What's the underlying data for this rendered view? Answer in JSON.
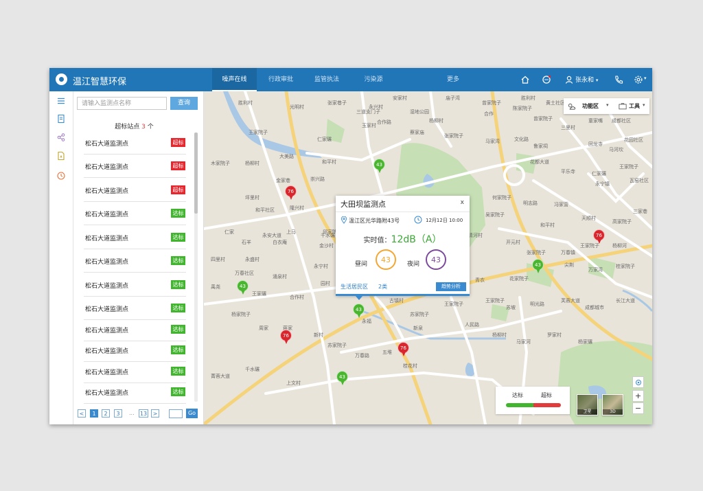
{
  "app": {
    "title": "温江智慧环保"
  },
  "nav": [
    {
      "label": "噪声在线",
      "active": true
    },
    {
      "label": "行政审批",
      "active": false
    },
    {
      "label": "监管执法",
      "active": false
    },
    {
      "label": "污染源",
      "active": false
    },
    {
      "label": "更多",
      "active": false
    }
  ],
  "header_icons": [
    "home-icon",
    "message-icon",
    "user-icon",
    "phone-icon",
    "settings-icon"
  ],
  "user": {
    "name": "张永和"
  },
  "rail_icons": [
    "menu-icon",
    "document-icon",
    "share-icon",
    "file-icon",
    "clock-icon"
  ],
  "panel": {
    "search_placeholder": "请输入监测点名称",
    "search_button": "查询",
    "count_prefix": "超标站点",
    "count_value": "3",
    "count_suffix": "个",
    "stations": [
      {
        "name": "松石大道监测点",
        "status": "超标",
        "level": "red"
      },
      {
        "name": "松石大道监测点",
        "status": "超标",
        "level": "red"
      },
      {
        "name": "松石大道监测点",
        "status": "超标",
        "level": "red"
      },
      {
        "name": "松石大道监测点",
        "status": "达标",
        "level": "green"
      },
      {
        "name": "松石大道监测点",
        "status": "达标",
        "level": "green"
      },
      {
        "name": "松石大道监测点",
        "status": "达标",
        "level": "green"
      },
      {
        "name": "松石大道监测点",
        "status": "达标",
        "level": "green"
      },
      {
        "name": "松石大道监测点",
        "status": "达标",
        "level": "green"
      },
      {
        "name": "松石大道监测点",
        "status": "达标",
        "level": "green"
      },
      {
        "name": "松石大道监测点",
        "status": "达标",
        "level": "green"
      },
      {
        "name": "松石大道监测点",
        "status": "达标",
        "level": "green"
      },
      {
        "name": "松石大道监测点",
        "status": "达标",
        "level": "green"
      }
    ],
    "pagination": {
      "prev": "<",
      "pages": [
        "1",
        "2",
        "3"
      ],
      "current": "1",
      "ellipsis": "...",
      "last": "13",
      "next": ">",
      "go": "Go"
    }
  },
  "map": {
    "toolbar": {
      "function_area": "功能区",
      "tools": "工具"
    },
    "place_labels": [
      "安家村",
      "庙子湾",
      "曾家院子",
      "陈家院子",
      "胜利村",
      "黄土社区",
      "三道堰",
      "胜利村",
      "张家巷子",
      "光明村",
      "永兴村",
      "三道支门子",
      "湿地公园",
      "合作路",
      "杨柳村",
      "合作",
      "曾家院子",
      "童家嘴",
      "成都社区",
      "三里村",
      "王家院子",
      "仁家碾",
      "玉家村",
      "蔡家庙",
      "张家院子",
      "马家湾",
      "文化路",
      "鲁家祠",
      "回龙寺",
      "马河坎",
      "花园社区",
      "大美路",
      "杨柳村",
      "花都大道",
      "平乐寺",
      "仁家碾",
      "王家院子",
      "木家院子",
      "瓦窑社区",
      "金家巷",
      "和平村",
      "永宁镇",
      "坪里村",
      "和平社区",
      "隆兴村",
      "崇兴路",
      "何家院子",
      "明志路",
      "冯家营",
      "吴家院子",
      "仁家",
      "和平村",
      "天顺村",
      "高家院子",
      "三家巷",
      "永安大道",
      "上马",
      "千水碾",
      "大林村",
      "江浦路",
      "开元村",
      "清河村",
      "开元村",
      "张家院子",
      "万春镇",
      "王家院子",
      "杨柳河",
      "石羊",
      "白衣庵",
      "邱家院子",
      "四里村",
      "永盛村",
      "金沙村",
      "高家院子",
      "盛家院子",
      "芙蓉大道",
      "草芽寺",
      "青衣",
      "花家院子",
      "尖荆",
      "万家湾",
      "桂家院子",
      "万春社区",
      "涌泉村",
      "永宁村",
      "芙蓉大道四段",
      "园村",
      "古镇村",
      "苏家院子",
      "王家院子",
      "王家院子",
      "苏坡",
      "明光路",
      "芙蓉大道",
      "成都城市",
      "长江大道",
      "禹尧",
      "王家碾",
      "合作村",
      "永福",
      "新泉",
      "人民路",
      "杨柳村",
      "马家河",
      "罗家村",
      "杨家碾",
      "杨家院子",
      "周家",
      "蒋家",
      "新村",
      "苏家院子",
      "万春路",
      "五堆",
      "桂花村",
      "千水碾",
      "菁蓉大道",
      "上文村"
    ],
    "markers": [
      {
        "value": "76",
        "level": "red"
      },
      {
        "value": "43",
        "level": "green"
      },
      {
        "value": "43",
        "level": "green"
      },
      {
        "value": "76",
        "level": "red"
      },
      {
        "value": "43",
        "level": "green"
      },
      {
        "value": "43",
        "level": "green"
      },
      {
        "value": "76",
        "level": "red"
      },
      {
        "value": "76",
        "level": "red"
      },
      {
        "value": "43",
        "level": "green"
      }
    ],
    "popup": {
      "title": "大田坝监测点",
      "close": "x",
      "address": "温江区光华路附43号",
      "time": "12月12日  10:00",
      "value_label": "实时值：",
      "value": "12dB（A）",
      "day_label": "昼间",
      "day_value": "43",
      "night_label": "夜间",
      "night_value": "43",
      "category": "生活居民区",
      "category_class": "2类",
      "trend_button": "趋势分析"
    },
    "legend": {
      "ok": "达标",
      "exceed": "超标"
    },
    "views": {
      "satellite": "卫星",
      "three_d": "3D"
    },
    "zoom": {
      "in": "+",
      "out": "−"
    },
    "colors": {
      "exceed": "#d9262d",
      "ok": "#4ab62f",
      "brand": "#2176b8"
    }
  }
}
